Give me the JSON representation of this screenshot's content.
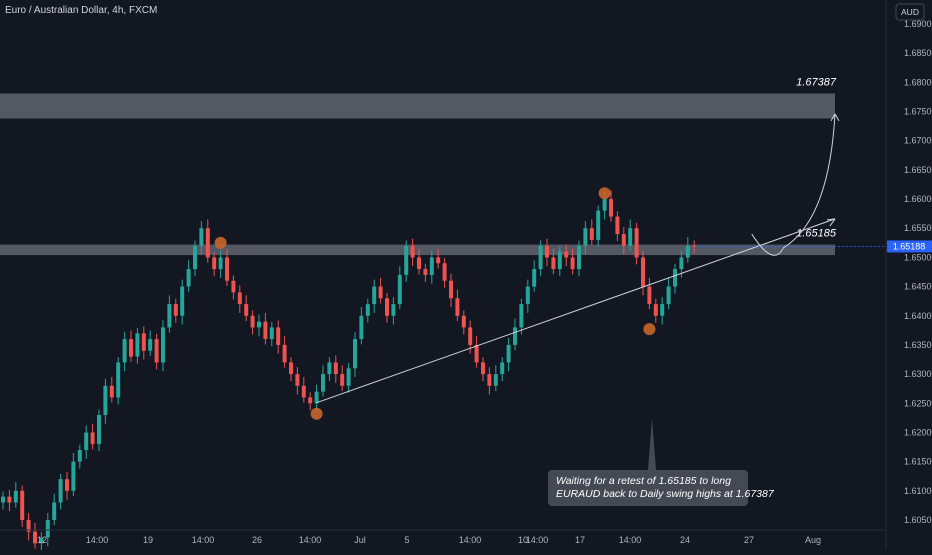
{
  "chart_data": {
    "type": "candlestick",
    "title": "Euro / Australian Dollar, 4h, FXCM",
    "currency": "AUD",
    "ylim": [
      1.602,
      1.693
    ],
    "y_ticks": [
      "1.69000",
      "1.68500",
      "1.68000",
      "1.67500",
      "1.67000",
      "1.66500",
      "1.66000",
      "1.65500",
      "1.65000",
      "1.64500",
      "1.64000",
      "1.63500",
      "1.63000",
      "1.62500",
      "1.62000",
      "1.61500",
      "1.61000",
      "1.60500"
    ],
    "x_ticks": [
      "12",
      "14:00",
      "19",
      "14:00",
      "26",
      "14:00",
      "Jul",
      "5",
      "14:00",
      "10",
      "14:00",
      "17",
      "14:00",
      "24",
      "27",
      "Aug"
    ],
    "current_price": "1.65188",
    "zones": [
      {
        "label": "1.67387",
        "top": 1.6781,
        "bottom": 1.6738
      },
      {
        "label": "1.65185",
        "top": 1.6522,
        "bottom": 1.6504
      }
    ],
    "annotation": "Waiting for a retest of 1.65185 to long EURAUD back to Daily swing highs at 1.67387",
    "colors": {
      "up": "#26a69a",
      "down": "#ef5350",
      "zone": "#8a8e99",
      "marker": "#c8662a",
      "background": "#131722",
      "current_price_badge": "#2962ff"
    },
    "close_series": [
      1.609,
      1.608,
      1.61,
      1.605,
      1.603,
      1.601,
      1.602,
      1.605,
      1.608,
      1.612,
      1.61,
      1.615,
      1.617,
      1.62,
      1.618,
      1.623,
      1.628,
      1.626,
      1.632,
      1.636,
      1.633,
      1.637,
      1.634,
      1.636,
      1.632,
      1.638,
      1.642,
      1.64,
      1.645,
      1.648,
      1.652,
      1.655,
      1.65,
      1.648,
      1.65,
      1.646,
      1.644,
      1.642,
      1.64,
      1.638,
      1.639,
      1.636,
      1.638,
      1.635,
      1.632,
      1.63,
      1.628,
      1.626,
      1.625,
      1.627,
      1.63,
      1.632,
      1.63,
      1.628,
      1.631,
      1.636,
      1.64,
      1.642,
      1.645,
      1.643,
      1.64,
      1.642,
      1.647,
      1.652,
      1.65,
      1.648,
      1.647,
      1.65,
      1.649,
      1.646,
      1.643,
      1.64,
      1.638,
      1.635,
      1.632,
      1.63,
      1.628,
      1.63,
      1.632,
      1.635,
      1.638,
      1.642,
      1.645,
      1.648,
      1.652,
      1.65,
      1.648,
      1.651,
      1.65,
      1.648,
      1.652,
      1.655,
      1.653,
      1.658,
      1.66,
      1.657,
      1.654,
      1.652,
      1.655,
      1.65,
      1.645,
      1.642,
      1.64,
      1.642,
      1.645,
      1.648,
      1.65,
      1.652,
      1.6519
    ],
    "markers": [
      {
        "index": 34,
        "price": 1.6525
      },
      {
        "index": 49,
        "price": 1.6232
      },
      {
        "index": 94,
        "price": 1.661
      },
      {
        "index": 101,
        "price": 1.6377
      }
    ],
    "trendline": [
      {
        "index": 49,
        "price": 1.6251
      },
      {
        "index": 130,
        "price": 1.6566
      }
    ],
    "projection": [
      {
        "index": 117,
        "price": 1.654
      },
      {
        "index": 121,
        "price": 1.6513
      },
      {
        "index": 130,
        "price": 1.6746
      }
    ]
  }
}
